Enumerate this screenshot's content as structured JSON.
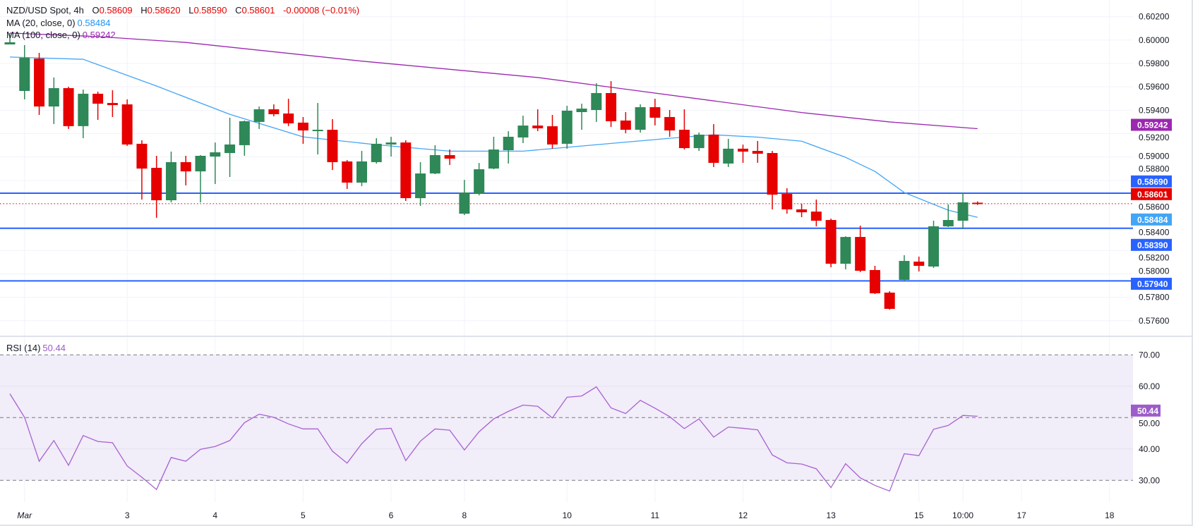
{
  "legend": {
    "symbol": "NZD/USD Spot, 4h",
    "o_label": "O",
    "o_value": "0.58609",
    "h_label": "H",
    "h_value": "0.58620",
    "l_label": "L",
    "l_value": "0.58590",
    "c_label": "C",
    "c_value": "0.58601",
    "change": "-0.00008 (−0.01%)",
    "ma20_label": "MA (20, close, 0)",
    "ma20_value": "0.58484",
    "ma100_label": "MA (100, close, 0)",
    "ma100_value": "0.59242",
    "rsi_label": "RSI (14)",
    "rsi_value": "50.44"
  },
  "colors": {
    "up": "#2e8857",
    "down": "#e60000",
    "ma20": "#42a5f5",
    "ma100": "#9c27b0",
    "level": "#2962ff",
    "last_price": "#e60000",
    "rsi": "#a862d0",
    "rsi_band": "#f1edf9"
  },
  "chart_data": [
    {
      "type": "candlestick",
      "title": "NZD/USD Spot, 4h",
      "ylim": [
        0.5745,
        0.6035
      ],
      "grid": true,
      "y_ticks": [
        "0.60200",
        "0.60000",
        "0.59800",
        "0.59600",
        "0.59400",
        "0.59200",
        "0.59000",
        "0.58800",
        "0.58600",
        "0.58400",
        "0.58200",
        "0.58000",
        "0.57800",
        "0.57600"
      ],
      "x_ticks": [
        {
          "label": "Mar",
          "bar": 1
        },
        {
          "label": "3",
          "bar": 8
        },
        {
          "label": "4",
          "bar": 14
        },
        {
          "label": "5",
          "bar": 20
        },
        {
          "label": "6",
          "bar": 26
        },
        {
          "label": "8",
          "bar": 31
        },
        {
          "label": "10",
          "bar": 38
        },
        {
          "label": "11",
          "bar": 44
        },
        {
          "label": "12",
          "bar": 50
        },
        {
          "label": "13",
          "bar": 56
        },
        {
          "label": "15",
          "bar": 62
        },
        {
          "label": "10:00",
          "bar": 65
        },
        {
          "label": "17",
          "bar": 69
        },
        {
          "label": "18",
          "bar": 75
        }
      ],
      "ohlc": [
        [
          0.59963,
          0.6006,
          0.59963,
          0.59981
        ],
        [
          0.59565,
          0.59957,
          0.59493,
          0.59848
        ],
        [
          0.59842,
          0.59891,
          0.5936,
          0.59432
        ],
        [
          0.59432,
          0.5968,
          0.59282,
          0.59589
        ],
        [
          0.59589,
          0.59601,
          0.5924,
          0.59264
        ],
        [
          0.59264,
          0.59577,
          0.59161,
          0.59541
        ],
        [
          0.59541,
          0.59559,
          0.59318,
          0.59456
        ],
        [
          0.59462,
          0.59571,
          0.59342,
          0.59444
        ],
        [
          0.5945,
          0.59493,
          0.59095,
          0.59107
        ],
        [
          0.59113,
          0.59143,
          0.58636,
          0.58901
        ],
        [
          0.58907,
          0.5901,
          0.5848,
          0.5863
        ],
        [
          0.5863,
          0.59046,
          0.58612,
          0.58956
        ],
        [
          0.58956,
          0.5901,
          0.58757,
          0.58877
        ],
        [
          0.58877,
          0.59016,
          0.58612,
          0.5901
        ],
        [
          0.59004,
          0.59124,
          0.58769,
          0.5904
        ],
        [
          0.59034,
          0.59336,
          0.58829,
          0.59107
        ],
        [
          0.59101,
          0.59312,
          0.5901,
          0.59306
        ],
        [
          0.593,
          0.59432,
          0.5924,
          0.59408
        ],
        [
          0.59408,
          0.5945,
          0.59348,
          0.59366
        ],
        [
          0.59372,
          0.59498,
          0.59264,
          0.59288
        ],
        [
          0.59294,
          0.59342,
          0.59113,
          0.59227
        ],
        [
          0.59227,
          0.59462,
          0.59022,
          0.59233
        ],
        [
          0.59233,
          0.59324,
          0.58889,
          0.58956
        ],
        [
          0.58962,
          0.58974,
          0.58727,
          0.58781
        ],
        [
          0.58781,
          0.59052,
          0.58751,
          0.58962
        ],
        [
          0.58956,
          0.59161,
          0.58944,
          0.59113
        ],
        [
          0.59107,
          0.59173,
          0.59004,
          0.59124
        ],
        [
          0.59124,
          0.59143,
          0.58624,
          0.58648
        ],
        [
          0.58648,
          0.58956,
          0.58582,
          0.58859
        ],
        [
          0.58859,
          0.59101,
          0.58853,
          0.59016
        ],
        [
          0.59016,
          0.59064,
          0.58932,
          0.58986
        ],
        [
          0.58515,
          0.58804,
          0.58503,
          0.58696
        ],
        [
          0.5869,
          0.58949,
          0.58672,
          0.58895
        ],
        [
          0.58901,
          0.59173,
          0.58895,
          0.59064
        ],
        [
          0.59058,
          0.59221,
          0.58944,
          0.59173
        ],
        [
          0.59167,
          0.59353,
          0.59119,
          0.59269
        ],
        [
          0.59269,
          0.59408,
          0.59221,
          0.59245
        ],
        [
          0.59263,
          0.5936,
          0.59071,
          0.59107
        ],
        [
          0.59113,
          0.59438,
          0.59071,
          0.59396
        ],
        [
          0.59384,
          0.59456,
          0.59233,
          0.59414
        ],
        [
          0.59402,
          0.59631,
          0.593,
          0.59547
        ],
        [
          0.59547,
          0.59649,
          0.59257,
          0.59306
        ],
        [
          0.59312,
          0.59384,
          0.59203,
          0.59233
        ],
        [
          0.59233,
          0.5945,
          0.59209,
          0.59426
        ],
        [
          0.59426,
          0.59498,
          0.5927,
          0.59336
        ],
        [
          0.59342,
          0.59402,
          0.59173,
          0.59227
        ],
        [
          0.59233,
          0.59408,
          0.59064,
          0.59076
        ],
        [
          0.59076,
          0.59209,
          0.59052,
          0.59191
        ],
        [
          0.59191,
          0.59281,
          0.58914,
          0.5895
        ],
        [
          0.58944,
          0.59155,
          0.58914,
          0.59071
        ],
        [
          0.59071,
          0.59106,
          0.5895,
          0.59046
        ],
        [
          0.59052,
          0.59137,
          0.5895,
          0.59028
        ],
        [
          0.59034,
          0.59052,
          0.58552,
          0.58678
        ],
        [
          0.58684,
          0.58733,
          0.58515,
          0.58552
        ],
        [
          0.58552,
          0.586,
          0.58485,
          0.58527
        ],
        [
          0.58533,
          0.58636,
          0.58407,
          0.58455
        ],
        [
          0.58461,
          0.58473,
          0.58057,
          0.58087
        ],
        [
          0.58087,
          0.58322,
          0.58039,
          0.58316
        ],
        [
          0.58316,
          0.58413,
          0.58015,
          0.58027
        ],
        [
          0.58033,
          0.58069,
          0.57828,
          0.57834
        ],
        [
          0.5784,
          0.57852,
          0.57695,
          0.57701
        ],
        [
          0.57949,
          0.5816,
          0.57937,
          0.58111
        ],
        [
          0.58105,
          0.58148,
          0.58021,
          0.58069
        ],
        [
          0.58063,
          0.58455,
          0.58051,
          0.58407
        ],
        [
          0.58407,
          0.58594,
          0.58401,
          0.58461
        ],
        [
          0.58455,
          0.58696,
          0.58383,
          0.58612
        ],
        [
          0.58609,
          0.5862,
          0.5859,
          0.58601
        ]
      ],
      "ma20": [
        [
          0,
          0.59855
        ],
        [
          5,
          0.59836
        ],
        [
          10,
          0.59607
        ],
        [
          15,
          0.59365
        ],
        [
          20,
          0.59172
        ],
        [
          25,
          0.59105
        ],
        [
          30,
          0.5905
        ],
        [
          35,
          0.5905
        ],
        [
          40,
          0.59105
        ],
        [
          45,
          0.5916
        ],
        [
          48,
          0.5919
        ],
        [
          51,
          0.5917
        ],
        [
          54,
          0.59135
        ],
        [
          57,
          0.58997
        ],
        [
          59,
          0.58877
        ],
        [
          61,
          0.58696
        ],
        [
          64,
          0.58545
        ],
        [
          66,
          0.58484
        ]
      ],
      "ma100": [
        [
          0,
          0.6006
        ],
        [
          6,
          0.6003
        ],
        [
          12,
          0.5998
        ],
        [
          18,
          0.599
        ],
        [
          24,
          0.5982
        ],
        [
          30,
          0.5975
        ],
        [
          36,
          0.5968
        ],
        [
          42,
          0.5958
        ],
        [
          48,
          0.5948
        ],
        [
          54,
          0.5938
        ],
        [
          60,
          0.593
        ],
        [
          66,
          0.59242
        ]
      ],
      "levels": [
        {
          "price": 0.5869,
          "label": "0.58690"
        },
        {
          "price": 0.5839,
          "label": "0.58390"
        },
        {
          "price": 0.5794,
          "label": "0.57940"
        }
      ],
      "last_price": {
        "price": 0.58601,
        "label": "0.58601"
      },
      "axis_badges": [
        {
          "price": 0.59242,
          "label": "0.59242",
          "color": "#9c27b0"
        },
        {
          "price": 0.5869,
          "label": "0.58690",
          "color": "#2962ff"
        },
        {
          "price": 0.58601,
          "label": "0.58601",
          "color": "#e60000"
        },
        {
          "price": 0.58484,
          "label": "0.58484",
          "color": "#42a5f5"
        },
        {
          "price": 0.5839,
          "label": "0.58390",
          "color": "#2962ff"
        },
        {
          "price": 0.5794,
          "label": "0.57940",
          "color": "#2962ff"
        }
      ]
    },
    {
      "type": "line",
      "title": "RSI (14)",
      "ylim": [
        25,
        75
      ],
      "y_ticks": [
        "70.00",
        "60.00",
        "50.00",
        "40.00",
        "30.00"
      ],
      "band": [
        30,
        70
      ],
      "dashed_levels": [
        70,
        50,
        30
      ],
      "badge": {
        "value": 50.44,
        "label": "50.44",
        "color": "#9d5cc9"
      },
      "values": [
        57.6,
        50.1,
        36.1,
        42.7,
        34.8,
        44.3,
        42.4,
        42.0,
        34.6,
        31.0,
        27.1,
        37.3,
        36.1,
        39.9,
        40.8,
        42.7,
        48.4,
        51.1,
        50.1,
        48.0,
        46.4,
        46.4,
        39.3,
        35.5,
        41.7,
        46.3,
        46.6,
        36.3,
        42.5,
        46.4,
        46.0,
        39.7,
        45.5,
        49.6,
        52.0,
        54.0,
        53.6,
        49.9,
        56.5,
        56.9,
        59.8,
        53.1,
        51.3,
        55.5,
        53.0,
        50.3,
        46.5,
        49.6,
        43.8,
        47.0,
        46.6,
        46.1,
        38.1,
        35.6,
        35.2,
        33.7,
        27.7,
        35.3,
        30.8,
        28.4,
        26.6,
        38.5,
        37.9,
        46.3,
        47.5,
        50.7,
        50.44
      ]
    }
  ]
}
